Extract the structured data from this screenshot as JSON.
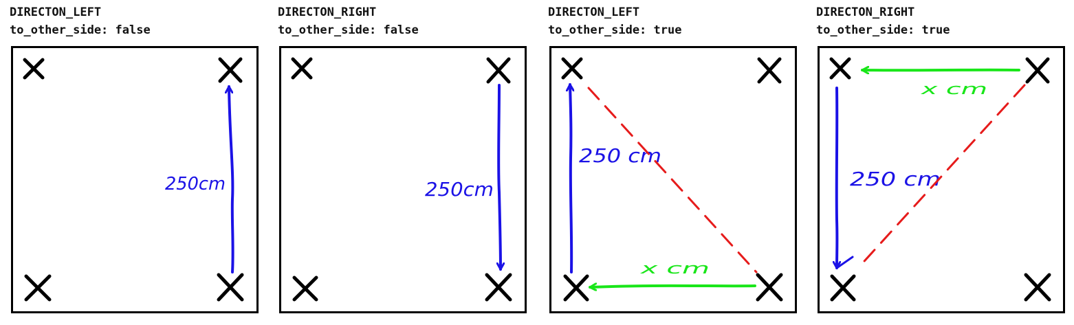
{
  "colors": {
    "marker": "#000000",
    "blue_arrow": "#1b12e6",
    "green_arrow": "#19e619",
    "red_dashed": "#e61b1b"
  },
  "panels": [
    {
      "title": "DIRECTON_LEFT",
      "subtitle": "to_other_side: false",
      "distance_label": "250cm",
      "blue_direction": "up"
    },
    {
      "title": "DIRECTON_RIGHT",
      "subtitle": "to_other_side: false",
      "distance_label": "250cm",
      "blue_direction": "down"
    },
    {
      "title": "DIRECTON_LEFT",
      "subtitle": "to_other_side: true",
      "distance_label": "250 cm",
      "x_label": "x cm",
      "blue_direction": "up",
      "green_direction": "left"
    },
    {
      "title": "DIRECTON_RIGHT",
      "subtitle": "to_other_side: true",
      "distance_label": "250 cm",
      "x_label": "x cm",
      "blue_direction": "down",
      "green_direction": "left"
    }
  ]
}
